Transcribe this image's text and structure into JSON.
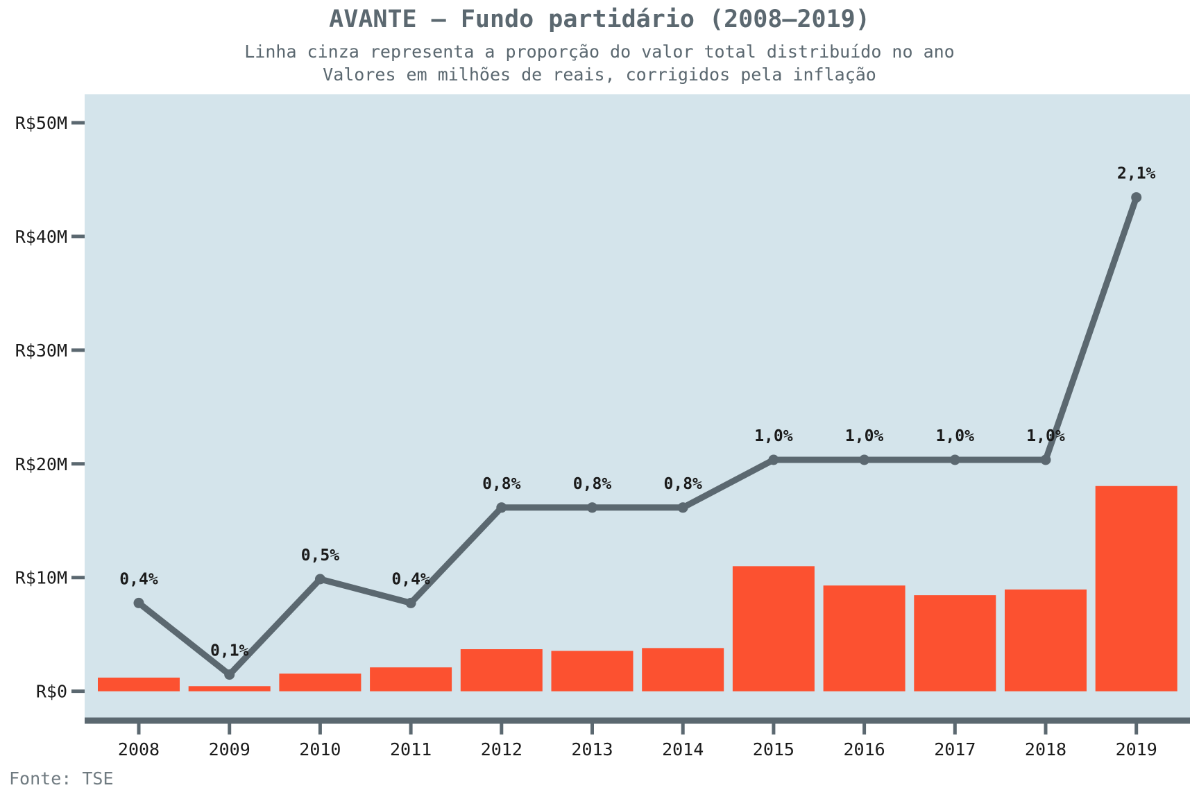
{
  "chart_data": {
    "type": "bar",
    "title": "AVANTE – Fundo partidário (2008–2019)",
    "subtitle_lines": [
      "Linha cinza representa a proporção do valor total distribuído no ano",
      "Valores em milhões de reais, corrigidos pela inflação"
    ],
    "source": "Fonte: TSE",
    "categories": [
      "2008",
      "2009",
      "2010",
      "2011",
      "2012",
      "2013",
      "2014",
      "2015",
      "2016",
      "2017",
      "2018",
      "2019"
    ],
    "series": [
      {
        "type": "bar",
        "values": [
          1.2,
          0.45,
          1.55,
          2.1,
          3.7,
          3.55,
          3.8,
          11.0,
          9.3,
          8.45,
          8.95,
          18.05
        ],
        "color": "#fc5130"
      },
      {
        "type": "line",
        "values": [
          0.4,
          0.1,
          0.5,
          0.4,
          0.8,
          0.8,
          0.8,
          1.0,
          1.0,
          1.0,
          1.0,
          2.1
        ],
        "labels": [
          "0,4%",
          "0,1%",
          "0,5%",
          "0,4%",
          "0,8%",
          "0,8%",
          "0,8%",
          "1,0%",
          "1,0%",
          "1,0%",
          "1,0%",
          "2,1%"
        ],
        "color": "#5b6870"
      }
    ],
    "y_ticks": [
      0,
      10,
      20,
      30,
      40,
      50
    ],
    "y_tick_labels": [
      "R$0",
      "R$10M",
      "R$20M",
      "R$30M",
      "R$40M",
      "R$50M"
    ],
    "ylim": [
      -2.4,
      52.5
    ],
    "plot_background": "#d4e4eb",
    "axis_color": "#5b6870",
    "grid": false
  }
}
